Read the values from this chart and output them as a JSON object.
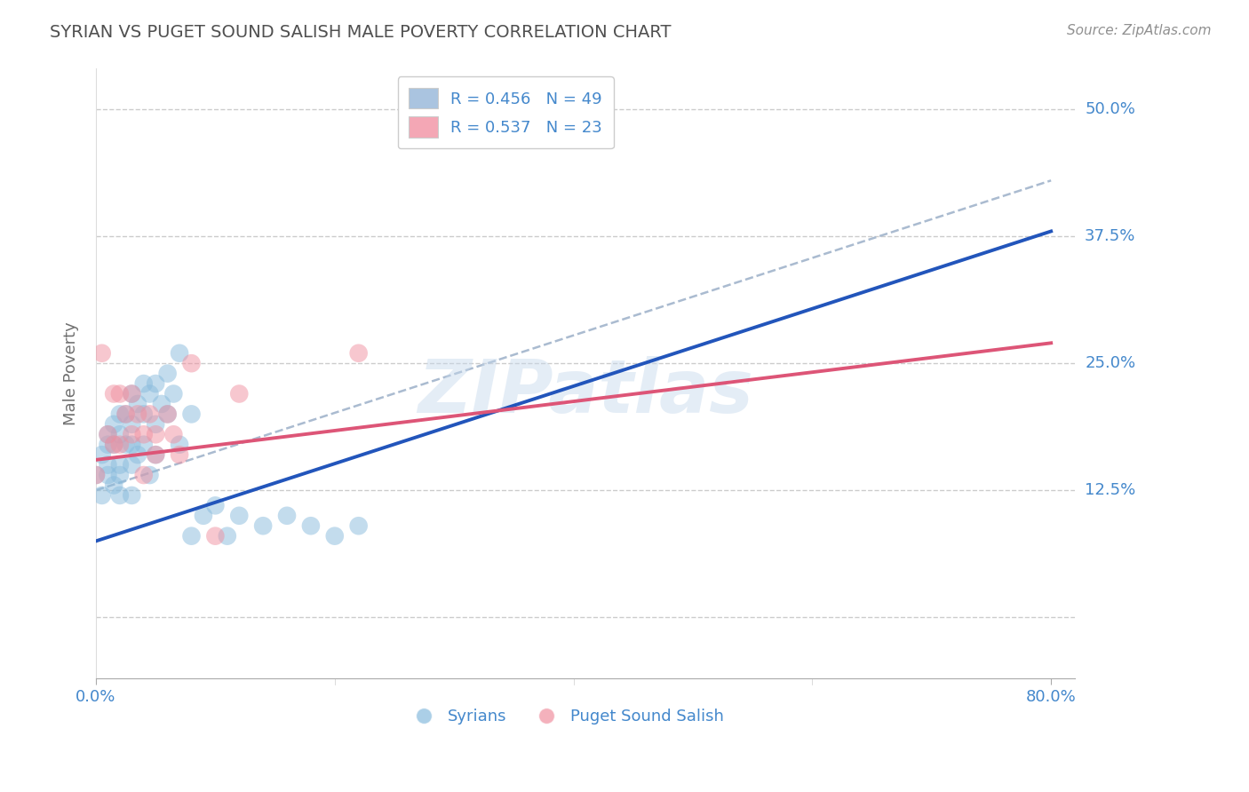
{
  "title": "SYRIAN VS PUGET SOUND SALISH MALE POVERTY CORRELATION CHART",
  "source": "Source: ZipAtlas.com",
  "ylabel_label": "Male Poverty",
  "xlim": [
    0.0,
    0.82
  ],
  "ylim": [
    -0.06,
    0.54
  ],
  "yticks": [
    0.0,
    0.125,
    0.25,
    0.375,
    0.5
  ],
  "ytick_labels": [
    "",
    "12.5%",
    "25.0%",
    "37.5%",
    "50.0%"
  ],
  "xtick_positions": [
    0.0,
    0.8
  ],
  "xtick_labels": [
    "0.0%",
    "80.0%"
  ],
  "legend_blue_label": "R = 0.456   N = 49",
  "legend_pink_label": "R = 0.537   N = 23",
  "legend_blue_color": "#aac4e0",
  "legend_pink_color": "#f4a7b5",
  "dot_blue_color": "#88bbdd",
  "dot_pink_color": "#f090a0",
  "blue_line_color": "#2255bb",
  "pink_line_color": "#dd5577",
  "ref_line_color": "#aabbd0",
  "watermark": "ZIPatlas",
  "syrians_x": [
    0.0,
    0.005,
    0.005,
    0.01,
    0.01,
    0.01,
    0.01,
    0.015,
    0.015,
    0.015,
    0.02,
    0.02,
    0.02,
    0.02,
    0.02,
    0.025,
    0.025,
    0.03,
    0.03,
    0.03,
    0.03,
    0.03,
    0.035,
    0.035,
    0.04,
    0.04,
    0.04,
    0.045,
    0.045,
    0.05,
    0.05,
    0.05,
    0.055,
    0.06,
    0.06,
    0.065,
    0.07,
    0.07,
    0.08,
    0.08,
    0.09,
    0.1,
    0.11,
    0.12,
    0.14,
    0.16,
    0.18,
    0.2,
    0.22
  ],
  "syrians_y": [
    0.14,
    0.16,
    0.12,
    0.18,
    0.17,
    0.15,
    0.14,
    0.19,
    0.17,
    0.13,
    0.2,
    0.18,
    0.15,
    0.14,
    0.12,
    0.2,
    0.17,
    0.22,
    0.19,
    0.17,
    0.15,
    0.12,
    0.21,
    0.16,
    0.23,
    0.2,
    0.17,
    0.22,
    0.14,
    0.23,
    0.19,
    0.16,
    0.21,
    0.24,
    0.2,
    0.22,
    0.26,
    0.17,
    0.2,
    0.08,
    0.1,
    0.11,
    0.08,
    0.1,
    0.09,
    0.1,
    0.09,
    0.08,
    0.09
  ],
  "salish_x": [
    0.0,
    0.005,
    0.01,
    0.015,
    0.015,
    0.02,
    0.02,
    0.025,
    0.03,
    0.03,
    0.035,
    0.04,
    0.04,
    0.045,
    0.05,
    0.05,
    0.06,
    0.065,
    0.07,
    0.08,
    0.1,
    0.12,
    0.22
  ],
  "salish_y": [
    0.14,
    0.26,
    0.18,
    0.22,
    0.17,
    0.22,
    0.17,
    0.2,
    0.22,
    0.18,
    0.2,
    0.18,
    0.14,
    0.2,
    0.18,
    0.16,
    0.2,
    0.18,
    0.16,
    0.25,
    0.08,
    0.22,
    0.26
  ],
  "blue_line_x": [
    0.0,
    0.8
  ],
  "blue_line_y": [
    0.075,
    0.38
  ],
  "pink_line_x": [
    0.0,
    0.8
  ],
  "pink_line_y": [
    0.155,
    0.27
  ],
  "ref_line_x": [
    0.0,
    0.8
  ],
  "ref_line_y": [
    0.125,
    0.43
  ],
  "background_color": "#ffffff",
  "grid_color": "#cccccc",
  "title_color": "#505050",
  "source_color": "#909090",
  "axis_label_color": "#707070",
  "tick_label_color": "#4488cc"
}
